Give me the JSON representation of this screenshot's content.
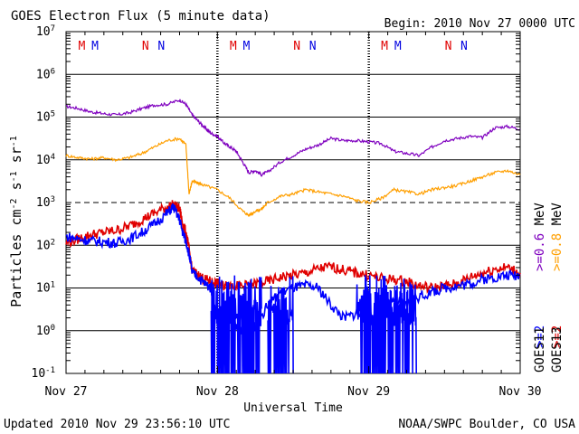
{
  "header": {
    "title": "GOES Electron Flux (5 minute data)",
    "begin": "Begin: 2010 Nov 27 0000 UTC"
  },
  "footer": {
    "updated": "Updated 2010 Nov 29 23:56:10 UTC",
    "credit": "NOAA/SWPC Boulder, CO USA"
  },
  "colors": {
    "goes13_06": "#7f00bf",
    "goes13_08": "#ff9f00",
    "goes11_2": "#0000ff",
    "goes13_2": "#e00000",
    "marker_m": "#e00000",
    "marker_n": "#0000e0"
  },
  "chart_data": {
    "type": "line",
    "title": "GOES Electron Flux (5 minute data)",
    "xlabel": "Universal Time",
    "ylabel": "Particles cm^-2 s^-1 sr^-1",
    "x_ticks": [
      "Nov 27",
      "Nov 28",
      "Nov 29",
      "Nov 30"
    ],
    "xlim_hours": [
      0,
      72
    ],
    "ylim_log10": [
      -1,
      7
    ],
    "y_scale": "log",
    "y_tick_exponents": [
      7,
      6,
      5,
      4,
      3,
      2,
      1,
      0,
      -1
    ],
    "dashed_threshold_exponent": 3,
    "grid": true,
    "day_markers": [
      {
        "hour": 2.5,
        "label": "M",
        "color": "marker_m"
      },
      {
        "hour": 4.6,
        "label": "M",
        "color": "marker_n"
      },
      {
        "hour": 12.6,
        "label": "N",
        "color": "marker_m"
      },
      {
        "hour": 15.1,
        "label": "N",
        "color": "marker_n"
      },
      {
        "hour": 26.5,
        "label": "M",
        "color": "marker_m"
      },
      {
        "hour": 28.6,
        "label": "M",
        "color": "marker_n"
      },
      {
        "hour": 36.6,
        "label": "N",
        "color": "marker_m"
      },
      {
        "hour": 39.1,
        "label": "N",
        "color": "marker_n"
      },
      {
        "hour": 50.5,
        "label": "M",
        "color": "marker_m"
      },
      {
        "hour": 52.6,
        "label": "M",
        "color": "marker_n"
      },
      {
        "hour": 60.6,
        "label": "N",
        "color": "marker_m"
      },
      {
        "hour": 63.1,
        "label": "N",
        "color": "marker_n"
      }
    ],
    "legend_right": {
      "energy_top": [
        {
          "text": ">=0.6",
          "color": "goes13_06"
        },
        {
          "text": ">=0.8",
          "color": "goes13_08"
        },
        {
          "text": "MeV",
          "color": "text"
        }
      ],
      "energy_bottom": [
        {
          "text": ">=2",
          "color": "goes11_2"
        },
        {
          "text": ">=2",
          "color": "goes13_2"
        }
      ],
      "satellites": [
        "GOES11",
        "GOES13"
      ]
    },
    "series": [
      {
        "name": ">=0.6 MeV",
        "color": "goes13_06",
        "x": [
          0,
          2,
          4,
          6,
          8,
          10,
          12,
          14,
          16,
          18,
          19,
          20,
          21,
          22,
          23,
          24,
          25,
          26,
          27,
          28,
          29,
          30,
          31,
          32,
          34,
          36,
          38,
          40,
          42,
          44,
          46,
          48,
          50,
          52,
          54,
          56,
          58,
          60,
          62,
          64,
          66,
          68,
          70,
          72
        ],
        "y": [
          5.25,
          5.2,
          5.12,
          5.08,
          5.05,
          5.1,
          5.2,
          5.28,
          5.3,
          5.4,
          5.3,
          5.05,
          4.9,
          4.75,
          4.62,
          4.55,
          4.4,
          4.3,
          4.2,
          3.95,
          3.7,
          3.75,
          3.65,
          3.72,
          3.95,
          4.1,
          4.25,
          4.35,
          4.5,
          4.45,
          4.45,
          4.42,
          4.38,
          4.2,
          4.15,
          4.1,
          4.3,
          4.45,
          4.5,
          4.55,
          4.52,
          4.75,
          4.78,
          4.72
        ]
      },
      {
        "name": ">=0.8 MeV",
        "color": "goes13_08",
        "x": [
          0,
          2,
          4,
          6,
          8,
          10,
          12,
          14,
          16,
          18,
          19,
          19.5,
          20,
          21,
          22,
          24,
          26,
          28,
          29,
          30,
          31,
          32,
          34,
          36,
          38,
          40,
          42,
          44,
          46,
          48,
          50,
          52,
          54,
          56,
          58,
          60,
          62,
          64,
          66,
          68,
          70,
          72
        ],
        "y": [
          4.1,
          4.05,
          4.02,
          4.05,
          4.0,
          4.05,
          4.15,
          4.3,
          4.45,
          4.5,
          4.35,
          3.2,
          3.5,
          3.45,
          3.4,
          3.3,
          3.1,
          2.8,
          2.7,
          2.8,
          2.85,
          3.0,
          3.15,
          3.2,
          3.3,
          3.25,
          3.2,
          3.15,
          3.05,
          3.0,
          3.1,
          3.3,
          3.25,
          3.2,
          3.3,
          3.35,
          3.4,
          3.5,
          3.6,
          3.7,
          3.75,
          3.65
        ]
      },
      {
        "name": ">=2 MeV",
        "color": "goes13_2",
        "x": [
          0,
          2,
          4,
          6,
          8,
          10,
          12,
          14,
          16,
          17,
          18,
          18.5,
          19,
          19.5,
          20,
          21,
          22,
          23,
          24,
          25,
          26,
          27,
          28,
          30,
          32,
          34,
          36,
          38,
          40,
          42,
          44,
          46,
          48,
          50,
          52,
          54,
          56,
          58,
          60,
          62,
          64,
          66,
          68,
          70,
          72
        ],
        "y": [
          2.05,
          2.15,
          2.25,
          2.3,
          2.35,
          2.45,
          2.6,
          2.75,
          2.9,
          2.95,
          2.85,
          2.5,
          2.3,
          1.9,
          1.4,
          1.3,
          1.2,
          1.15,
          1.1,
          1.05,
          1.08,
          1.05,
          1.05,
          1.1,
          1.15,
          1.25,
          1.3,
          1.35,
          1.45,
          1.5,
          1.42,
          1.35,
          1.3,
          1.22,
          1.2,
          1.15,
          1.05,
          1.0,
          1.05,
          1.1,
          1.25,
          1.35,
          1.45,
          1.48,
          1.35
        ]
      },
      {
        "name": ">=2 MeV",
        "color": "goes11_2",
        "x": [
          0,
          2,
          4,
          6,
          8,
          10,
          12,
          14,
          16,
          17,
          18,
          18.5,
          19,
          19.5,
          20,
          21,
          22,
          23,
          24,
          25,
          26,
          27,
          28,
          30,
          32,
          34,
          36,
          38,
          40,
          42,
          44,
          46,
          48,
          50,
          52,
          54,
          56,
          58,
          60,
          62,
          64,
          66,
          68,
          70,
          72
        ],
        "y": [
          2.2,
          2.15,
          2.1,
          2.08,
          2.05,
          2.15,
          2.3,
          2.5,
          2.75,
          2.9,
          2.6,
          2.3,
          2.1,
          1.8,
          1.35,
          1.25,
          1.1,
          1.0,
          0.3,
          0.1,
          0.2,
          0.1,
          0.0,
          0.1,
          0.6,
          0.9,
          1.0,
          1.05,
          1.0,
          0.6,
          0.3,
          0.4,
          0.2,
          0.5,
          0.7,
          0.6,
          0.8,
          0.9,
          1.0,
          1.05,
          1.1,
          1.2,
          1.25,
          1.3,
          1.3
        ]
      }
    ],
    "blue_dropouts": [
      {
        "from": 23,
        "to": 31
      },
      {
        "from": 32,
        "to": 36
      },
      {
        "from": 46,
        "to": 55.5
      }
    ]
  }
}
